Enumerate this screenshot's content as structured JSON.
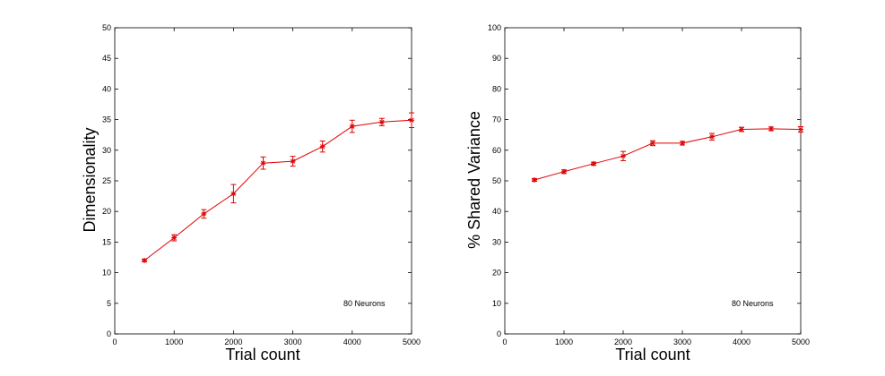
{
  "chart_data": [
    {
      "type": "line",
      "xlabel": "Trial count",
      "ylabel": "Dimensionality",
      "xlim": [
        0,
        5000
      ],
      "ylim": [
        0,
        50
      ],
      "x_ticks": [
        0,
        1000,
        2000,
        3000,
        4000,
        5000
      ],
      "y_ticks": [
        0,
        5,
        10,
        15,
        20,
        25,
        30,
        35,
        40,
        45,
        50
      ],
      "grid": false,
      "annotation": "80 Neurons",
      "series": [
        {
          "color": "#e00000",
          "marker": "asterisk",
          "x": [
            500,
            1000,
            1500,
            2000,
            2500,
            3000,
            3500,
            4000,
            4500,
            5000
          ],
          "y": [
            12.0,
            15.7,
            19.6,
            22.9,
            27.9,
            28.2,
            30.6,
            33.9,
            34.6,
            34.9
          ],
          "error": [
            0.2,
            0.5,
            0.7,
            1.5,
            1.0,
            0.8,
            0.9,
            1.0,
            0.6,
            1.2
          ]
        }
      ]
    },
    {
      "type": "line",
      "xlabel": "Trial count",
      "ylabel": "% Shared Variance",
      "xlim": [
        0,
        5000
      ],
      "ylim": [
        0,
        100
      ],
      "x_ticks": [
        0,
        1000,
        2000,
        3000,
        4000,
        5000
      ],
      "y_ticks": [
        0,
        10,
        20,
        30,
        40,
        50,
        60,
        70,
        80,
        90,
        100
      ],
      "grid": false,
      "annotation": "80 Neurons",
      "series": [
        {
          "color": "#e00000",
          "marker": "asterisk",
          "x": [
            500,
            1000,
            1500,
            2000,
            2500,
            3000,
            3500,
            4000,
            4500,
            5000
          ],
          "y": [
            50.3,
            53.0,
            55.6,
            58.1,
            62.3,
            62.3,
            64.4,
            66.8,
            67.0,
            66.8
          ],
          "error": [
            0.4,
            0.6,
            0.5,
            1.5,
            0.8,
            0.6,
            1.1,
            0.7,
            0.6,
            0.9
          ]
        }
      ]
    }
  ]
}
